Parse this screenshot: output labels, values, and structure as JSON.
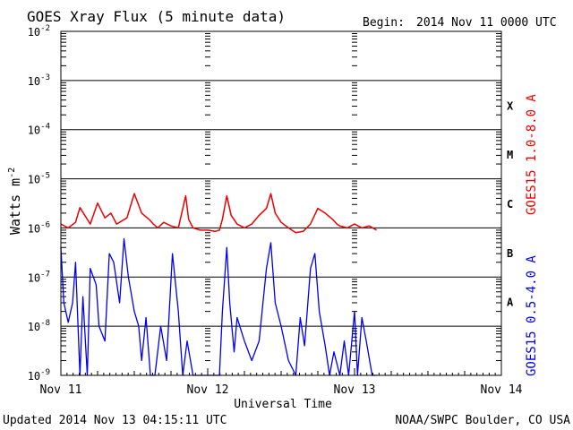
{
  "header": {
    "title": "GOES Xray Flux (5 minute data)",
    "begin_label": "Begin:",
    "begin_value": "2014 Nov 11 0000 UTC"
  },
  "footer": {
    "updated": "Updated 2014 Nov 13 04:15:11 UTC",
    "credit": "NOAA/SWPC Boulder, CO USA"
  },
  "colors": {
    "long_channel": "#ee0000",
    "short_channel": "#0000ee",
    "axes": "#000000"
  },
  "chart_data": {
    "type": "line",
    "title": "GOES Xray Flux (5 minute data)",
    "xlabel": "Universal Time",
    "ylabel": "Watts m",
    "ylabel_superscript": "-2",
    "y_scale": "log",
    "ylim": [
      1e-09,
      0.01
    ],
    "xlim": [
      "2014-11-11",
      "2014-11-14"
    ],
    "x_unit": "days",
    "x_ticks": [
      {
        "value": 0,
        "label": "Nov 11"
      },
      {
        "value": 1,
        "label": "Nov 12"
      },
      {
        "value": 2,
        "label": "Nov 13"
      },
      {
        "value": 3,
        "label": "Nov 14"
      }
    ],
    "y_ticks": [
      {
        "exp": -9,
        "base": "10",
        "sup": "-9"
      },
      {
        "exp": -8,
        "base": "10",
        "sup": "-8"
      },
      {
        "exp": -7,
        "base": "10",
        "sup": "-7"
      },
      {
        "exp": -6,
        "base": "10",
        "sup": "-6"
      },
      {
        "exp": -5,
        "base": "10",
        "sup": "-5"
      },
      {
        "exp": -4,
        "base": "10",
        "sup": "-4"
      },
      {
        "exp": -3,
        "base": "10",
        "sup": "-3"
      },
      {
        "exp": -2,
        "base": "10",
        "sup": "-2"
      }
    ],
    "flare_classes": [
      {
        "label": "A",
        "exp": -7.5
      },
      {
        "label": "B",
        "exp": -6.5
      },
      {
        "label": "C",
        "exp": -5.5
      },
      {
        "label": "M",
        "exp": -4.5
      },
      {
        "label": "X",
        "exp": -3.5
      }
    ],
    "grid": "horizontal lines at each decade",
    "series": [
      {
        "name": "GOES15 1.0-8.0 A",
        "color": "#ee0000",
        "x": [
          0,
          0.05,
          0.1,
          0.13,
          0.2,
          0.25,
          0.3,
          0.34,
          0.38,
          0.45,
          0.5,
          0.55,
          0.6,
          0.63,
          0.66,
          0.7,
          0.75,
          0.8,
          0.85,
          0.87,
          0.9,
          0.95,
          1.0,
          1.05,
          1.08,
          1.1,
          1.13,
          1.16,
          1.2,
          1.25,
          1.3,
          1.35,
          1.4,
          1.43,
          1.46,
          1.5,
          1.55,
          1.6,
          1.65,
          1.7,
          1.75,
          1.8,
          1.85,
          1.88,
          1.9,
          1.95,
          2.0,
          2.05,
          2.1,
          2.15
        ],
        "values": [
          1.2e-06,
          1e-06,
          1.3e-06,
          2.6e-06,
          1.2e-06,
          3.2e-06,
          1.6e-06,
          2e-06,
          1.2e-06,
          1.6e-06,
          5e-06,
          2e-06,
          1.5e-06,
          1.2e-06,
          1e-06,
          1.3e-06,
          1.1e-06,
          1e-06,
          4.5e-06,
          1.5e-06,
          1e-06,
          9e-07,
          9e-07,
          8.5e-07,
          9e-07,
          1.5e-06,
          4.5e-06,
          1.8e-06,
          1.2e-06,
          1e-06,
          1.2e-06,
          1.8e-06,
          2.5e-06,
          5e-06,
          2e-06,
          1.3e-06,
          1e-06,
          8e-07,
          8.5e-07,
          1.2e-06,
          2.5e-06,
          2e-06,
          1.5e-06,
          1.2e-06,
          1.1e-06,
          1e-06,
          1.2e-06,
          1e-06,
          1.1e-06,
          9e-07
        ]
      },
      {
        "name": "GOES15 0.5-4.0 A",
        "color": "#0000ee",
        "x": [
          0,
          0.02,
          0.05,
          0.08,
          0.1,
          0.13,
          0.15,
          0.18,
          0.2,
          0.24,
          0.26,
          0.3,
          0.33,
          0.36,
          0.4,
          0.43,
          0.46,
          0.5,
          0.53,
          0.55,
          0.58,
          0.61,
          0.64,
          0.68,
          0.72,
          0.76,
          0.8,
          0.83,
          0.86,
          0.9,
          0.95,
          1.0,
          1.04,
          1.08,
          1.1,
          1.13,
          1.15,
          1.18,
          1.2,
          1.25,
          1.3,
          1.35,
          1.4,
          1.43,
          1.46,
          1.5,
          1.55,
          1.6,
          1.63,
          1.66,
          1.7,
          1.73,
          1.76,
          1.8,
          1.83,
          1.86,
          1.9,
          1.93,
          1.96,
          2.0,
          2.02,
          2.05,
          2.08,
          2.12,
          2.15
        ],
        "values": [
          4e-07,
          3e-08,
          1.2e-08,
          3e-08,
          2e-07,
          1e-09,
          4e-08,
          1e-09,
          1.5e-07,
          7e-08,
          1e-08,
          5e-09,
          3e-07,
          2e-07,
          3e-08,
          6e-07,
          1e-07,
          2e-08,
          1e-08,
          2e-09,
          1.5e-08,
          1e-09,
          1e-09,
          1e-08,
          2e-09,
          3e-07,
          2e-08,
          1e-09,
          5e-09,
          1e-09,
          1e-09,
          1e-09,
          1e-09,
          1e-09,
          2e-08,
          4e-07,
          3e-08,
          3e-09,
          1.5e-08,
          5e-09,
          2e-09,
          5e-09,
          1.5e-07,
          5e-07,
          3e-08,
          1e-08,
          2e-09,
          1e-09,
          1.5e-08,
          4e-09,
          1.5e-07,
          3e-07,
          2e-08,
          4e-09,
          1e-09,
          3e-09,
          1e-09,
          5e-09,
          1e-09,
          2e-08,
          1e-09,
          1.5e-08,
          5e-09,
          1e-09,
          1e-09
        ]
      }
    ]
  }
}
